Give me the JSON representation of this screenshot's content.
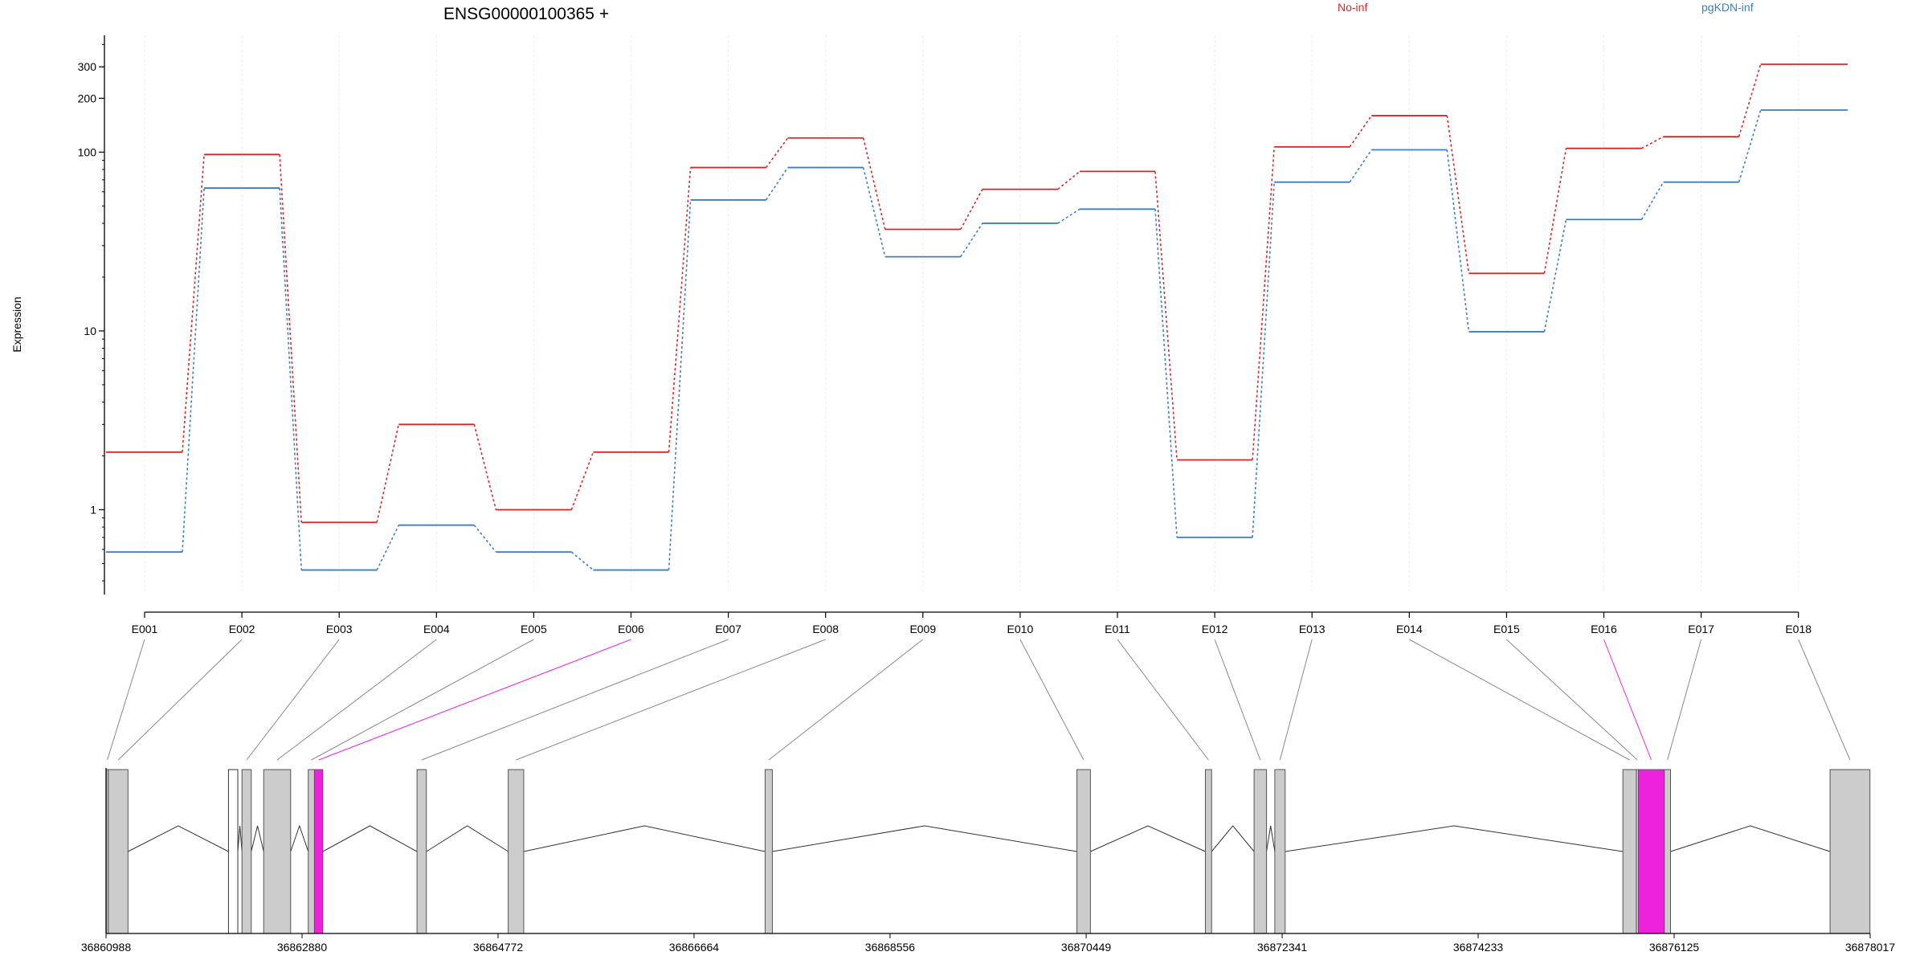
{
  "chart_data": {
    "type": "line",
    "title": "ENSG00000100365 +",
    "ylabel": "Expression",
    "y_scale": "log",
    "ylim": [
      0.35,
      450
    ],
    "y_ticks": [
      {
        "value": 1,
        "label": "1"
      },
      {
        "value": 10,
        "label": "10"
      },
      {
        "value": 100,
        "label": "100"
      },
      {
        "value": 200,
        "label": "200"
      },
      {
        "value": 300,
        "label": "300"
      }
    ],
    "categories": [
      "E001",
      "E002",
      "E003",
      "E004",
      "E005",
      "E006",
      "E007",
      "E008",
      "E009",
      "E010",
      "E011",
      "E012",
      "E013",
      "E014",
      "E015",
      "E016",
      "E017",
      "E018"
    ],
    "series": [
      {
        "name": "No-inf",
        "color": "#d62728",
        "values": [
          2.1,
          97,
          0.85,
          3.0,
          1.0,
          2.1,
          82,
          120,
          37,
          62,
          78,
          1.9,
          107,
          160,
          21,
          105,
          122,
          310
        ]
      },
      {
        "name": "pgKDN-inf",
        "color": "#3a7fc1",
        "values": [
          0.58,
          63,
          0.46,
          0.82,
          0.58,
          0.46,
          54,
          82,
          26,
          40,
          48,
          0.7,
          68,
          103,
          9.9,
          42,
          68,
          172
        ]
      }
    ],
    "gene_model": {
      "start": 36860988,
      "end": 36878017,
      "coord_ticks": [
        "36860988",
        "36862880",
        "36864772",
        "36866664",
        "36868556",
        "36870449",
        "36872341",
        "36874233",
        "36876125",
        "36878017"
      ],
      "highlight_color": "#ee22dd",
      "highlighted_bins": [
        "E006",
        "E016"
      ],
      "exons": [
        {
          "bin": "E001",
          "start": 36860990,
          "end": 36861010
        },
        {
          "bin": "E002",
          "start": 36861010,
          "end": 36861200
        },
        {
          "bin": "E003",
          "start": 36862300,
          "end": 36862390
        },
        {
          "bin": "E004",
          "start": 36862510,
          "end": 36862770
        },
        {
          "bin": "E005",
          "start": 36862940,
          "end": 36863000
        },
        {
          "bin": "E006",
          "start": 36863000,
          "end": 36863080
        },
        {
          "bin": "E007",
          "start": 36863990,
          "end": 36864080
        },
        {
          "bin": "E008",
          "start": 36864870,
          "end": 36865020
        },
        {
          "bin": "E009",
          "start": 36867350,
          "end": 36867420
        },
        {
          "bin": "E010",
          "start": 36870360,
          "end": 36870490
        },
        {
          "bin": "E011",
          "start": 36871600,
          "end": 36871660
        },
        {
          "bin": "E012",
          "start": 36872070,
          "end": 36872190
        },
        {
          "bin": "E013",
          "start": 36872270,
          "end": 36872370
        },
        {
          "bin": "E014",
          "start": 36875630,
          "end": 36875760
        },
        {
          "bin": "E015",
          "start": 36875760,
          "end": 36875780
        },
        {
          "bin": "E016",
          "start": 36875780,
          "end": 36876030
        },
        {
          "bin": "E017",
          "start": 36876030,
          "end": 36876090
        },
        {
          "bin": "E018",
          "start": 36877630,
          "end": 36878015
        }
      ],
      "hollow_exon": {
        "start": 36862170,
        "end": 36862260
      }
    }
  }
}
